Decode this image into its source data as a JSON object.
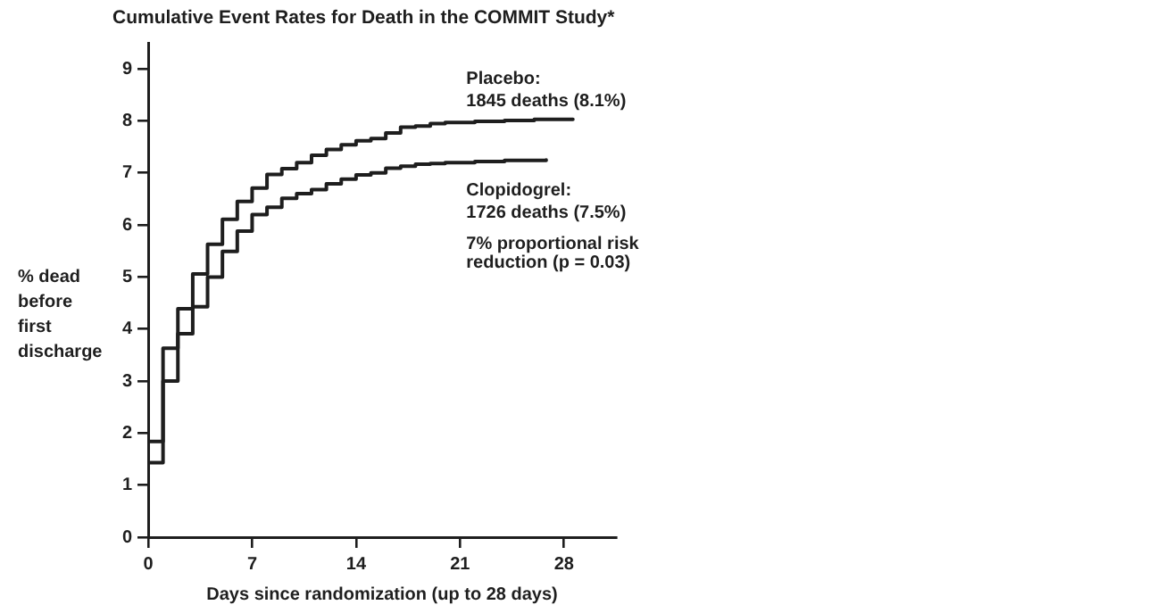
{
  "chart_data": {
    "type": "step",
    "title": "Cumulative Event Rates for Death in the COMMIT Study*",
    "xlabel": "Days since randomization (up to 28 days)",
    "ylabel": "% dead before first discharge",
    "series": [
      {
        "name": "Placebo:",
        "color": "#1e1e1e",
        "x": [
          0,
          1,
          2,
          3,
          4,
          5,
          6,
          7,
          8,
          9,
          10,
          11,
          12,
          13,
          14,
          15,
          16,
          17,
          18,
          19,
          20,
          22,
          24,
          26,
          28.6
        ],
        "values": [
          1.84,
          3.63,
          4.39,
          5.06,
          5.63,
          6.11,
          6.45,
          6.71,
          6.97,
          7.08,
          7.2,
          7.34,
          7.45,
          7.54,
          7.62,
          7.66,
          7.77,
          7.88,
          7.9,
          7.95,
          7.97,
          7.99,
          8.01,
          8.03,
          8.03
        ]
      },
      {
        "name": "Clopidogrel:",
        "color": "#1e1e1e",
        "x": [
          0,
          1,
          2,
          3,
          4,
          5,
          6,
          7,
          8,
          9,
          10,
          11,
          12,
          13,
          14,
          15,
          16,
          17,
          18,
          19,
          20,
          22,
          24,
          26.8
        ],
        "values": [
          1.43,
          3.0,
          3.91,
          4.43,
          5.0,
          5.49,
          5.88,
          6.2,
          6.34,
          6.51,
          6.6,
          6.68,
          6.79,
          6.88,
          6.96,
          7.0,
          7.09,
          7.13,
          7.17,
          7.18,
          7.2,
          7.22,
          7.24,
          7.25
        ]
      }
    ],
    "annotations": [
      "1845 deaths (8.1%)",
      "1726 deaths (7.5%)",
      "7% proportional risk reduction (p = 0.03)"
    ],
    "xlim": [
      0,
      31.5
    ],
    "ylim": [
      0,
      9.5
    ],
    "xticks": [
      0,
      7,
      14,
      21,
      28
    ],
    "yticks": [
      0,
      1,
      2,
      3,
      4,
      5,
      6,
      7,
      8,
      9
    ],
    "line_style": "solid"
  }
}
